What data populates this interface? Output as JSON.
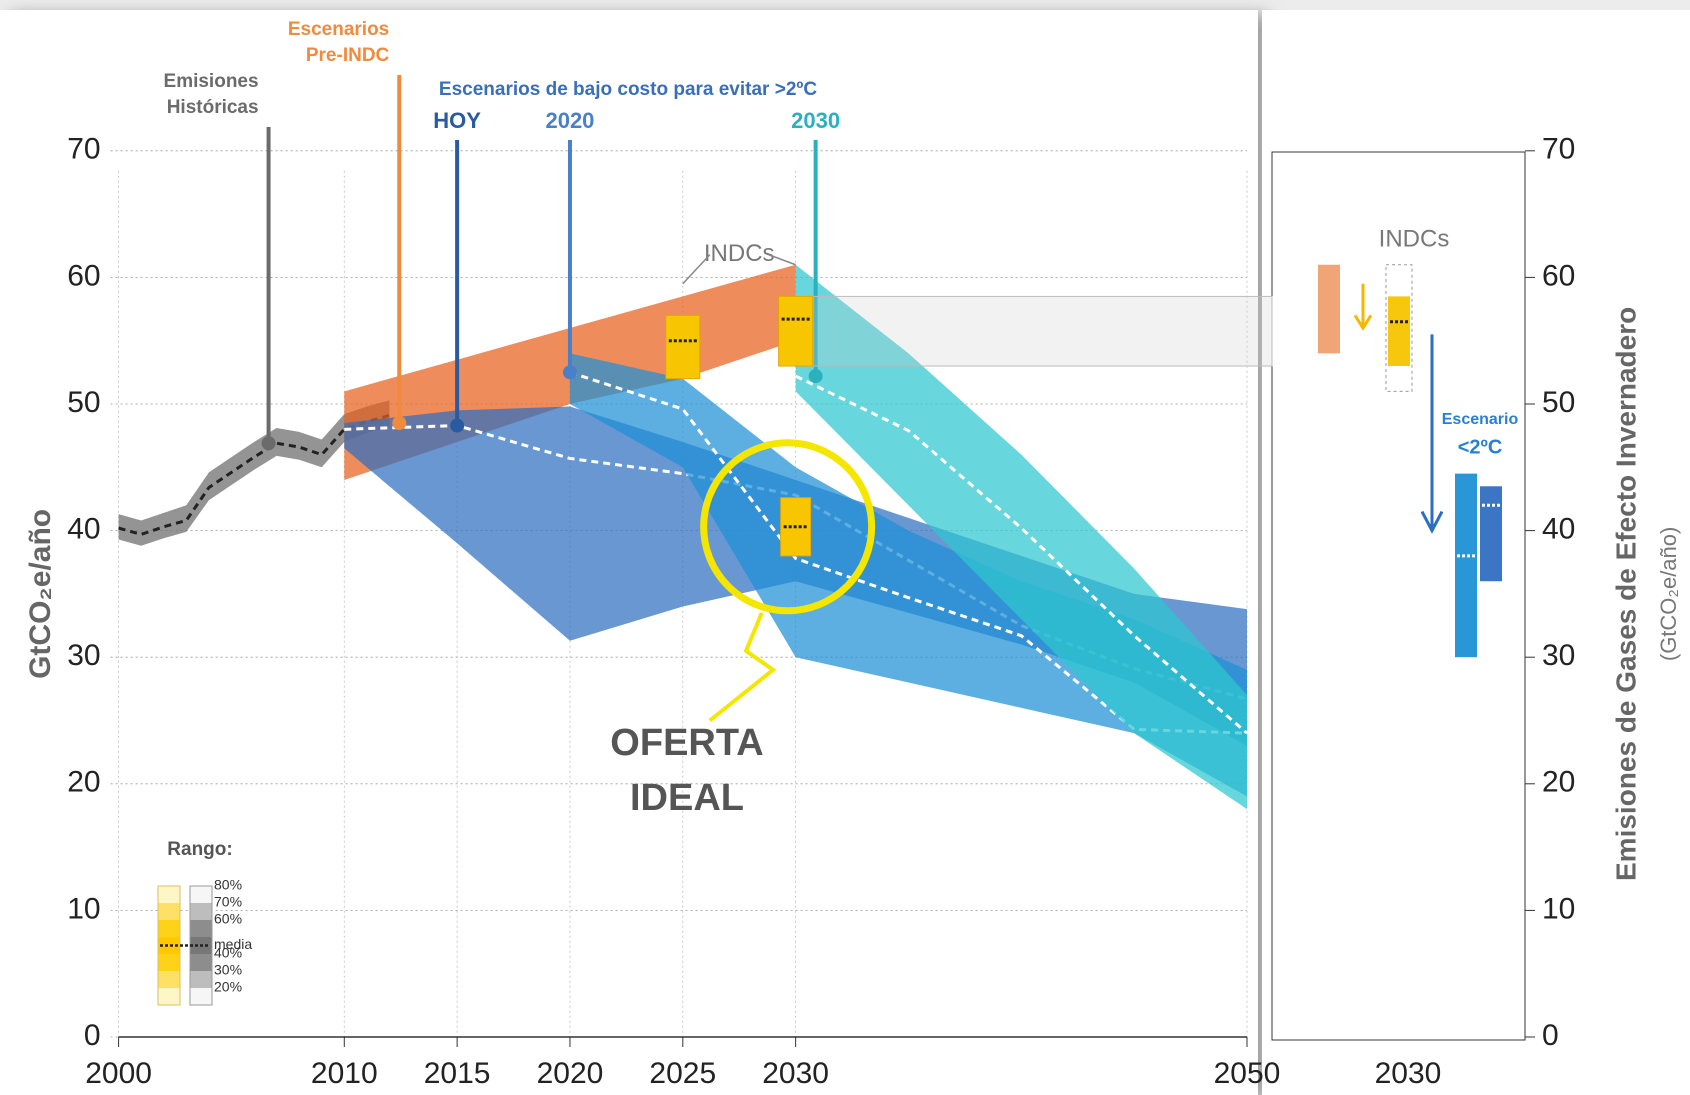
{
  "chart_data": {
    "type": "area",
    "xlim": [
      2000,
      2050
    ],
    "ylim": [
      0,
      70
    ],
    "xticks": [
      2000,
      2010,
      2015,
      2020,
      2025,
      2030,
      2050
    ],
    "yticks": [
      0,
      10,
      20,
      30,
      40,
      50,
      60,
      70
    ],
    "y2lim": [
      0,
      70
    ],
    "y2ticks": [
      0,
      10,
      20,
      30,
      40,
      50,
      60,
      70
    ],
    "y_label": "GtCO₂e/año",
    "y2_label": "Emisiones de Gases de Efecto Invernadero",
    "y2_unit": "(GtCO₂e/año)",
    "grid": true,
    "series": [
      {
        "name": "Emisiones Históricas",
        "color": "#6b6b6b",
        "x": [
          2000,
          2001,
          2002,
          2003,
          2004,
          2005,
          2006,
          2007,
          2008,
          2009,
          2010,
          2011,
          2012
        ],
        "values": [
          40.2,
          39.7,
          40.3,
          40.8,
          43.4,
          44.6,
          45.8,
          46.9,
          46.6,
          46.0,
          48.0,
          48.6,
          49.1
        ],
        "lower": [
          39.3,
          38.8,
          39.4,
          39.9,
          42.4,
          43.6,
          44.8,
          45.9,
          45.6,
          45.0,
          47.0,
          47.7,
          48.2
        ],
        "upper": [
          41.3,
          40.8,
          41.4,
          42.0,
          44.6,
          45.8,
          47.0,
          48.1,
          47.8,
          47.2,
          49.2,
          49.8,
          50.3
        ]
      },
      {
        "name": "Escenarios Pre-INDC",
        "color": "#e8601c",
        "x": [
          2010,
          2015,
          2020,
          2025,
          2030
        ],
        "lower": [
          44,
          47,
          50,
          52,
          55
        ],
        "upper": [
          51,
          53.5,
          56,
          58.5,
          61
        ]
      },
      {
        "name": "HOY",
        "color": "#2f6fc0",
        "x": [
          2010,
          2015,
          2020,
          2025,
          2030,
          2040,
          2045,
          2050
        ],
        "values": [
          48,
          48.3,
          45.7,
          44.5,
          42.8,
          32.5,
          29.1,
          26.7
        ],
        "lower": [
          46.5,
          39,
          31.3,
          34,
          36,
          31,
          28,
          23
        ],
        "upper": [
          48.5,
          49.5,
          49.8,
          47,
          44,
          38,
          35,
          33.8
        ]
      },
      {
        "name": "2020",
        "color": "#1e90d6",
        "x": [
          2020,
          2025,
          2030,
          2035,
          2040,
          2045,
          2050
        ],
        "values": [
          52.5,
          49.6,
          37.8,
          34.7,
          31.7,
          24.3,
          24.0
        ],
        "lower": [
          50,
          45,
          30,
          28,
          26,
          24,
          19
        ],
        "upper": [
          54,
          52,
          45,
          40,
          36,
          33,
          29
        ]
      },
      {
        "name": "2030",
        "color": "#2cc8d0",
        "x": [
          2030,
          2035,
          2040,
          2045,
          2050
        ],
        "values": [
          52.2,
          47.9,
          40.2,
          31.7,
          24.0
        ],
        "lower": [
          51,
          42,
          33,
          24,
          18
        ],
        "upper": [
          61,
          54,
          46,
          37,
          27
        ]
      }
    ],
    "scenario_title": "Escenarios de bajo costo para evitar >2ºC",
    "indc_label": "INDCs",
    "indc_boxes": [
      {
        "x": 2025,
        "low": 52,
        "high": 57,
        "median": 55
      },
      {
        "x": 2030,
        "low": 53,
        "high": 58.5,
        "median": 56.7
      }
    ],
    "ideal_box": {
      "x": 2030,
      "low": 38,
      "high": 42.6,
      "median": 40.3
    },
    "ideal_label": [
      "OFERTA",
      "IDEAL"
    ],
    "right_panel": {
      "x_label": "2030",
      "indc_label": "INDCs",
      "scenario_label": [
        "Escenario",
        "<2ºC"
      ],
      "bars": [
        {
          "color": "#f0a070",
          "low": 54,
          "high": 61
        },
        {
          "color": "#f5c400",
          "low": 53,
          "high": 58.5,
          "median": 56.5
        },
        {
          "color": "#1e90d6",
          "low": 30,
          "high": 44.5,
          "median": 38
        },
        {
          "color": "#2f6fc0",
          "low": 36,
          "high": 43.5,
          "median": 42
        }
      ]
    },
    "legend": {
      "title": "Rango:",
      "levels": [
        "80%",
        "70%",
        "60%",
        "media",
        "40%",
        "30%",
        "20%"
      ]
    }
  }
}
